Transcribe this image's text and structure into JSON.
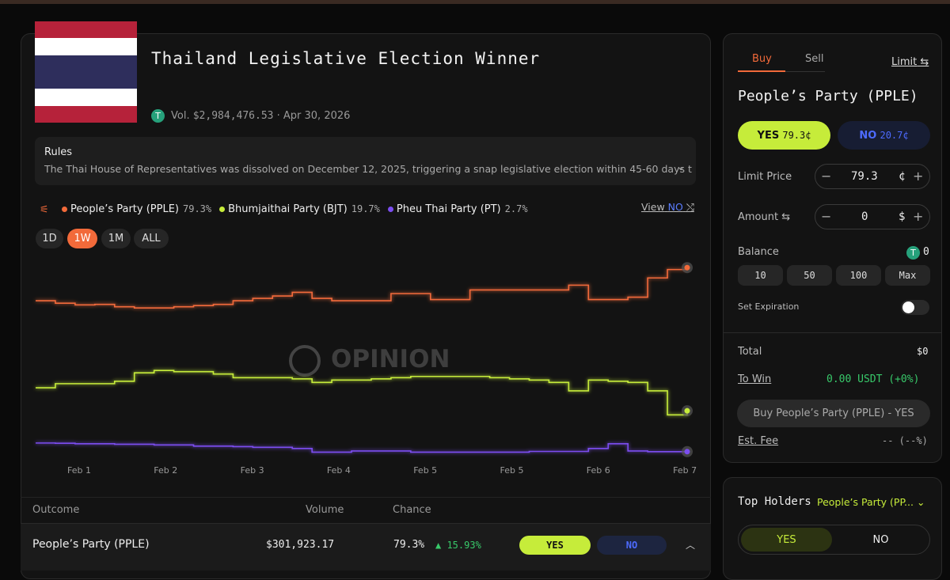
{
  "market": {
    "title": "Thailand Legislative Election Winner",
    "vol_label": "Vol.",
    "volume": "$2,984,476.53",
    "date": "Apr 30, 2026"
  },
  "rules": {
    "heading": "Rules",
    "text": "The Thai House of Representatives was dissolved on December 12, 2025, triggering a snap legislative election within 45-60 days t"
  },
  "view": {
    "label": "View",
    "side": "NO"
  },
  "ranges": [
    "1D",
    "1W",
    "1M",
    "ALL"
  ],
  "chart_data": {
    "type": "line",
    "watermark": "OPINION",
    "ylim": [
      0,
      82
    ],
    "x_labels": [
      "Feb 1",
      "Feb 2",
      "Feb 3",
      "Feb 4",
      "Feb 5",
      "Feb 5",
      "Feb 6",
      "Feb 7"
    ],
    "series": [
      {
        "name": "People’s Party (PPLE)",
        "color": "#f26a3a",
        "last_label": "79.3%",
        "values": [
          65.5,
          64.5,
          63.8,
          64,
          63,
          62.5,
          62.5,
          63,
          63.5,
          64,
          65.5,
          66.5,
          67.5,
          69,
          66.5,
          65.5,
          65.5,
          65.5,
          68.5,
          68.5,
          66,
          66,
          70,
          70,
          70,
          70,
          70,
          72,
          66,
          66,
          67,
          75,
          78.5,
          79.3
        ]
      },
      {
        "name": "Bhumjaithai Party (BJT)",
        "color": "#c6ec3a",
        "last_label": "19.7%",
        "values": [
          29.3,
          31,
          31,
          31,
          32,
          35.5,
          36.5,
          36,
          36,
          35,
          33.5,
          33.5,
          33.5,
          33,
          31.5,
          32.5,
          32.5,
          33,
          33.5,
          34,
          34,
          34,
          34,
          33.5,
          33,
          32.5,
          31.5,
          28,
          32.5,
          32,
          31.5,
          28,
          18,
          19.7
        ]
      },
      {
        "name": "Pheu Thai Party (PT)",
        "color": "#7b4df0",
        "last_label": "2.7%",
        "values": [
          6.3,
          6.2,
          6,
          6,
          5.8,
          5.8,
          5.5,
          5.5,
          5,
          5,
          4.8,
          4.5,
          4.5,
          4,
          2.5,
          2.5,
          3,
          3,
          3,
          2.5,
          2.5,
          2.5,
          2.5,
          2.5,
          2.5,
          2.8,
          2.8,
          2.8,
          4,
          6,
          3,
          2.7,
          2.7,
          2.7
        ]
      }
    ]
  },
  "table": {
    "headers": [
      "Outcome",
      "Volume",
      "Chance"
    ],
    "rows": [
      {
        "outcome": "People’s Party (PPLE)",
        "volume": "$301,923.17",
        "chance": "79.3%",
        "change": "15.93%",
        "yes": "YES",
        "no": "NO"
      }
    ]
  },
  "order": {
    "tabs": [
      "Buy",
      "Sell"
    ],
    "limit": "Limit",
    "outcome": "People’s Party (PPLE)",
    "yes": "YES",
    "yes_price": "79.3¢",
    "no": "NO",
    "no_price": "20.7¢",
    "limit_price_label": "Limit Price",
    "limit_price": "79.3",
    "price_unit": "¢",
    "amount_label": "Amount",
    "amount": "0",
    "amount_unit": "$",
    "balance_label": "Balance",
    "balance": "0",
    "quick": [
      "10",
      "50",
      "100",
      "Max"
    ],
    "expiration": "Set Expiration",
    "total_label": "Total",
    "total": "$0",
    "to_win_label": "To Win",
    "to_win": "0.00 USDT (+0%)",
    "button": "Buy People’s Party (PPLE) - YES",
    "fee_label": "Est. Fee",
    "fee": "-- (--%)"
  },
  "holders": {
    "title": "Top Holders",
    "outcome": "People’s Party (PP...",
    "yes": "YES",
    "no": "NO"
  }
}
